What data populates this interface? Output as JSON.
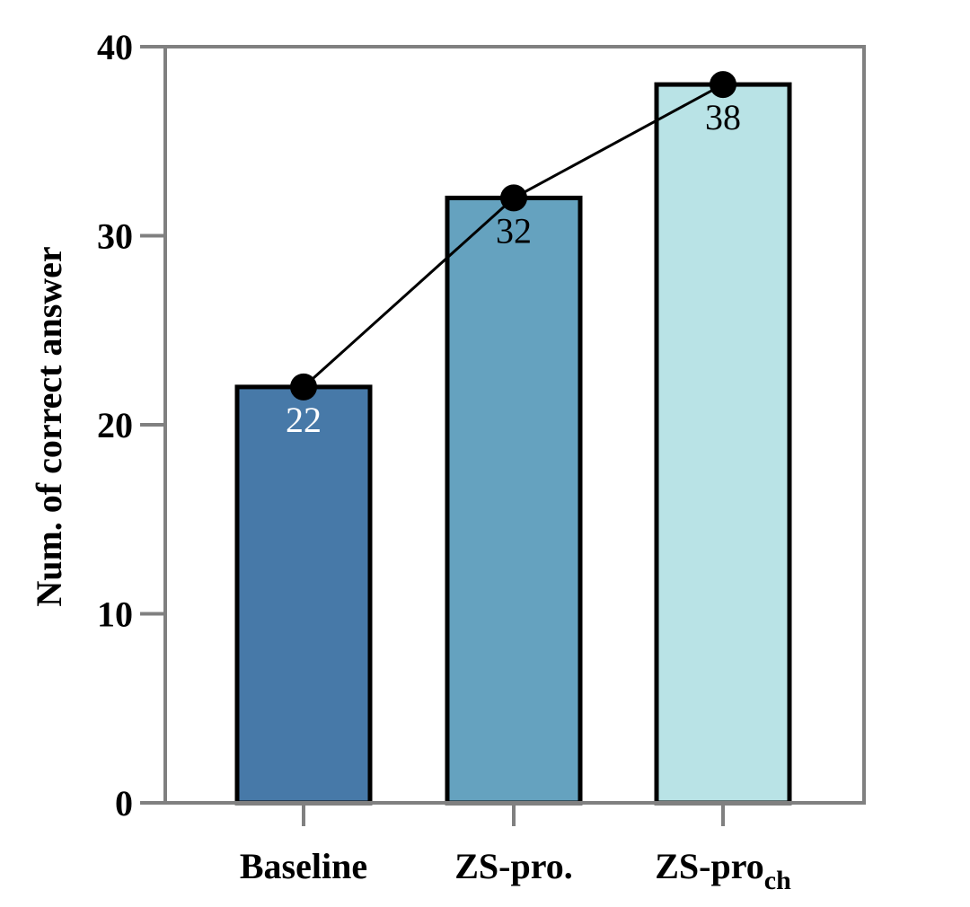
{
  "chart_data": {
    "type": "bar",
    "categories": [
      "Baseline",
      "ZS-pro.",
      "ZS-pro"
    ],
    "category_subscripts": [
      "",
      "",
      "ch"
    ],
    "values": [
      22,
      32,
      38
    ],
    "data_labels": [
      "22",
      "32",
      "38"
    ],
    "bar_colors": [
      "#4779a8",
      "#65a2bf",
      "#b9e3e6"
    ],
    "data_label_colors": [
      "#ffffff",
      "#000000",
      "#000000"
    ],
    "line_overlay": true,
    "line_color": "#000000",
    "marker_color": "#000000",
    "frame_color": "#808080",
    "ylabel": "Num. of correct answer",
    "xlabel": "",
    "ylim": [
      0,
      40
    ],
    "yticks": [
      0,
      10,
      20,
      30,
      40
    ],
    "ytick_labels": [
      "0",
      "10",
      "20",
      "30",
      "40"
    ],
    "grid": false,
    "legend": "none"
  }
}
